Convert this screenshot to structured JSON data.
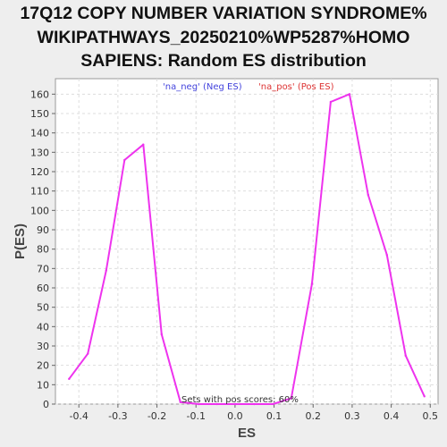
{
  "chart_data": {
    "type": "line",
    "title_lines": [
      "17Q12 COPY NUMBER VARIATION SYNDROME%",
      "WIKIPATHWAYS_20250210%WP5287%HOMO",
      "SAPIENS: Random ES distribution"
    ],
    "xlabel": "ES",
    "ylabel": "P(ES)",
    "xlim": [
      -0.46,
      0.52
    ],
    "ylim": [
      0,
      168
    ],
    "xticks": [
      "-0.4",
      "-0.3",
      "-0.2",
      "-0.1",
      "0.0",
      "0.1",
      "0.2",
      "0.3",
      "0.4",
      "0.5"
    ],
    "xtick_values": [
      -0.4,
      -0.3,
      -0.2,
      -0.1,
      0.0,
      0.1,
      0.2,
      0.3,
      0.4,
      0.5
    ],
    "yticks": [
      "0",
      "10",
      "20",
      "30",
      "40",
      "50",
      "60",
      "70",
      "80",
      "90",
      "100",
      "110",
      "120",
      "130",
      "140",
      "150",
      "160"
    ],
    "ytick_values": [
      0,
      10,
      20,
      30,
      40,
      50,
      60,
      70,
      80,
      90,
      100,
      110,
      120,
      130,
      140,
      150,
      160
    ],
    "grid": true,
    "legend": [
      {
        "label": "'na_neg' (Neg ES)",
        "color": "#4444dd"
      },
      {
        "label": "'na_pos' (Pos ES)",
        "color": "#dd3333"
      }
    ],
    "annotation": "Sets with pos scores: 60%",
    "series": [
      {
        "color": "#ee33ee",
        "x": [
          -0.425,
          -0.377,
          -0.33,
          -0.283,
          -0.235,
          -0.188,
          -0.14,
          -0.093,
          -0.046,
          0.002,
          0.049,
          0.097,
          0.144,
          0.197,
          0.245,
          0.293,
          0.341,
          0.389,
          0.437,
          0.485
        ],
        "y": [
          13,
          26,
          69,
          126,
          134,
          36,
          1,
          0,
          0,
          0,
          0,
          0,
          3,
          62,
          156,
          160,
          108,
          77,
          25,
          4
        ]
      }
    ]
  }
}
